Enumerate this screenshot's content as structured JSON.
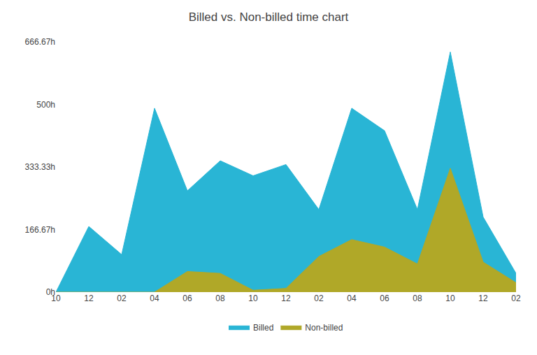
{
  "chart_data": {
    "type": "area",
    "title": "Billed vs. Non-billed time chart",
    "categories": [
      "10",
      "12",
      "02",
      "04",
      "06",
      "08",
      "10",
      "12",
      "02",
      "04",
      "06",
      "08",
      "10",
      "12",
      "02"
    ],
    "series": [
      {
        "name": "Billed",
        "color": "#29b5d5",
        "values": [
          0,
          175,
          100,
          490,
          270,
          350,
          310,
          340,
          220,
          490,
          430,
          220,
          640,
          200,
          50
        ]
      },
      {
        "name": "Non-billed",
        "color": "#b0a828",
        "values": [
          0,
          0,
          0,
          0,
          55,
          50,
          5,
          10,
          95,
          140,
          120,
          75,
          330,
          80,
          25
        ]
      }
    ],
    "ylim": [
      0,
      666.67
    ],
    "yticks": [
      {
        "value": 0,
        "label": "0h"
      },
      {
        "value": 166.67,
        "label": "166.67h"
      },
      {
        "value": 333.33,
        "label": "333.33h"
      },
      {
        "value": 500,
        "label": "500h"
      },
      {
        "value": 666.67,
        "label": "666.67h"
      }
    ],
    "grid": false,
    "legend": "bottom"
  }
}
